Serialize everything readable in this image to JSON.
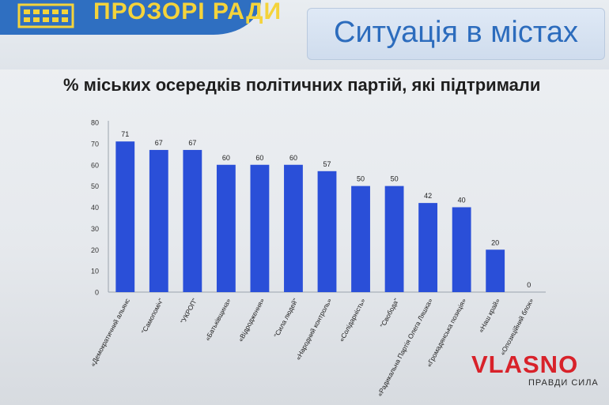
{
  "header": {
    "logo_text": "ПРОЗОРІ РАДИ",
    "page_title": "Ситуація в містах"
  },
  "colors": {
    "bar": "#2a4fd8",
    "accent": "#2f6fc1",
    "logo_yellow": "#f4d33b",
    "watermark_red": "#d8222a"
  },
  "chart_data": {
    "type": "bar",
    "title": "% міських осередків політичних партій, які підтримали",
    "xlabel": "",
    "ylabel": "",
    "ylim": [
      0,
      80
    ],
    "yticks": [
      0,
      10,
      20,
      30,
      40,
      50,
      60,
      70,
      80
    ],
    "grid": false,
    "categories": [
      "«Демократичний альянс",
      "\"Самопоміч\"",
      "\"УКРОП\"",
      "«Батьківщина»",
      "«Відродження»",
      "\"Сила людей\"",
      "«Народний контроль»",
      "«Солідарність»",
      "\"Свобода\"",
      "«Радикальна Партія Олега Ляшка»",
      "«Громадянська позиція»",
      "«Наш край»",
      "«Опозиційний блок»"
    ],
    "values": [
      71,
      67,
      67,
      60,
      60,
      60,
      57,
      50,
      50,
      42,
      40,
      20,
      0
    ]
  },
  "watermark": {
    "logo": "VLASNO",
    "tagline": "ПРАВДИ СИЛА"
  }
}
